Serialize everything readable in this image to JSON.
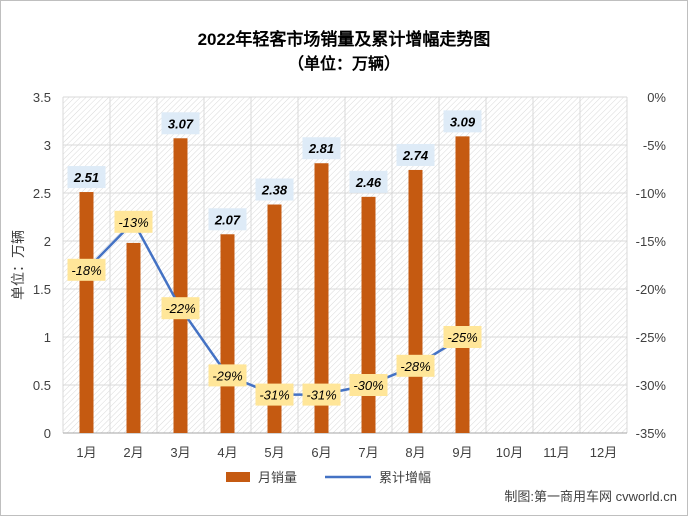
{
  "chart_data": {
    "type": "bar+line",
    "title": "2022年轻客市场销量及累计增幅走势图",
    "subtitle": "（单位：万辆）",
    "ylabel": "单位：万辆",
    "categories": [
      "1月",
      "2月",
      "3月",
      "4月",
      "5月",
      "6月",
      "7月",
      "8月",
      "9月",
      "10月",
      "11月",
      "12月"
    ],
    "y_left": {
      "ylim": [
        0,
        3.5
      ],
      "ticks": [
        "0",
        "0.5",
        "1",
        "1.5",
        "2",
        "2.5",
        "3",
        "3.5"
      ]
    },
    "y_right": {
      "ylim": [
        -35,
        0
      ],
      "ticks": [
        "0%",
        "-5%",
        "-10%",
        "-15%",
        "-20%",
        "-25%",
        "-30%",
        "-35%"
      ]
    },
    "series": [
      {
        "name": "月销量",
        "kind": "bar",
        "axis": "left",
        "color": "#c55a11",
        "values": [
          2.51,
          1.98,
          3.07,
          2.07,
          2.38,
          2.81,
          2.46,
          2.74,
          3.09,
          null,
          null,
          null
        ],
        "labels": [
          "2.51",
          null,
          "3.07",
          "2.07",
          "2.38",
          "2.81",
          "2.46",
          "2.74",
          "3.09",
          null,
          null,
          null
        ]
      },
      {
        "name": "累计增幅",
        "kind": "line",
        "axis": "right",
        "color": "#4472c4",
        "values": [
          -18,
          -13,
          -22,
          -29,
          -31,
          -31,
          -30,
          -28,
          -25,
          null,
          null,
          null
        ],
        "labels": [
          "-18%",
          "-13%",
          "-22%",
          "-29%",
          "-31%",
          "-31%",
          "-30%",
          "-28%",
          "-25%",
          null,
          null,
          null
        ]
      }
    ],
    "legend_position": "bottom",
    "grid": true,
    "source": "制图:第一商用车网 cvworld.cn"
  }
}
